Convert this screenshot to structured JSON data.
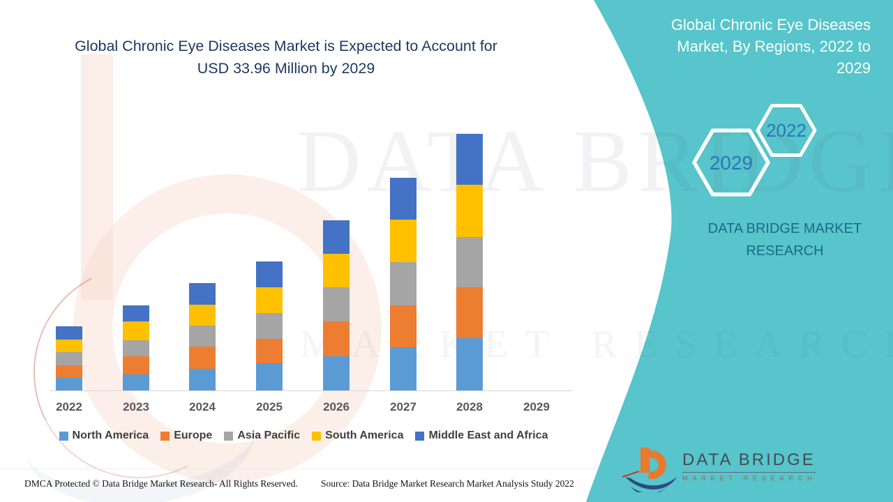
{
  "theme": {
    "teal": "#57c5cb",
    "title_navy": "#1f3864",
    "hexagon_year_blue": "#2e75b6",
    "panel_caption_teal": "#17637f",
    "axis_label_gray": "#595959",
    "legend_text_gray": "#3f3f3f",
    "logo_orange": "#e8792e",
    "logo_navy": "#2e4a80"
  },
  "main_title": {
    "line1": "Global Chronic Eye Diseases Market is Expected to Account for",
    "line2": "USD 33.96 Million by 2029"
  },
  "side_panel": {
    "title_line1": "Global Chronic Eye Diseases",
    "title_line2": "Market, By Regions, 2022 to",
    "title_line3": "2029",
    "hexagon_large_label": "2029",
    "hexagon_small_label": "2022",
    "caption_line1": "DATA BRIDGE MARKET",
    "caption_line2": "RESEARCH",
    "logo_title": "DATA BRIDGE",
    "logo_subtitle": "MARKET RESEARCH"
  },
  "watermark": {
    "line1": "DATA BRIDGE",
    "line2": "MARKET RESEARCH"
  },
  "chart_data": {
    "type": "bar",
    "stacked": true,
    "title": "Global Chronic Eye Diseases Market is Expected to Account for USD 33.96 Million by 2029",
    "categories": [
      "2022",
      "2023",
      "2024",
      "2025",
      "2026",
      "2027",
      "2028",
      "2029"
    ],
    "series": [
      {
        "name": "North America",
        "color": "#5b9bd5",
        "values": [
          18,
          23,
          31,
          39,
          49,
          62,
          75,
          0
        ]
      },
      {
        "name": "Europe",
        "color": "#ed7d31",
        "values": [
          18,
          26,
          32,
          35,
          50,
          60,
          73,
          0
        ]
      },
      {
        "name": "Asia Pacific",
        "color": "#a5a5a5",
        "values": [
          19,
          23,
          30,
          37,
          49,
          62,
          72,
          0
        ]
      },
      {
        "name": "South America",
        "color": "#ffc000",
        "values": [
          18,
          27,
          30,
          37,
          48,
          61,
          75,
          0
        ]
      },
      {
        "name": "Middle East and Africa",
        "color": "#4472c4",
        "values": [
          19,
          23,
          31,
          37,
          48,
          60,
          73,
          0
        ]
      }
    ],
    "value_units": "relative height (chart displays no value axis or gridlines)",
    "xlabel": "",
    "ylabel": "",
    "grid": false,
    "legend_position": "bottom",
    "note": "No bar is drawn for 2029; the title states the market is expected to account for USD 33.96 Million by 2029."
  },
  "footer": {
    "left_text": "DMCA Protected © Data Bridge Market Research- All Rights Reserved.",
    "right_text": "Source: Data Bridge Market Research Market Analysis Study 2022"
  }
}
